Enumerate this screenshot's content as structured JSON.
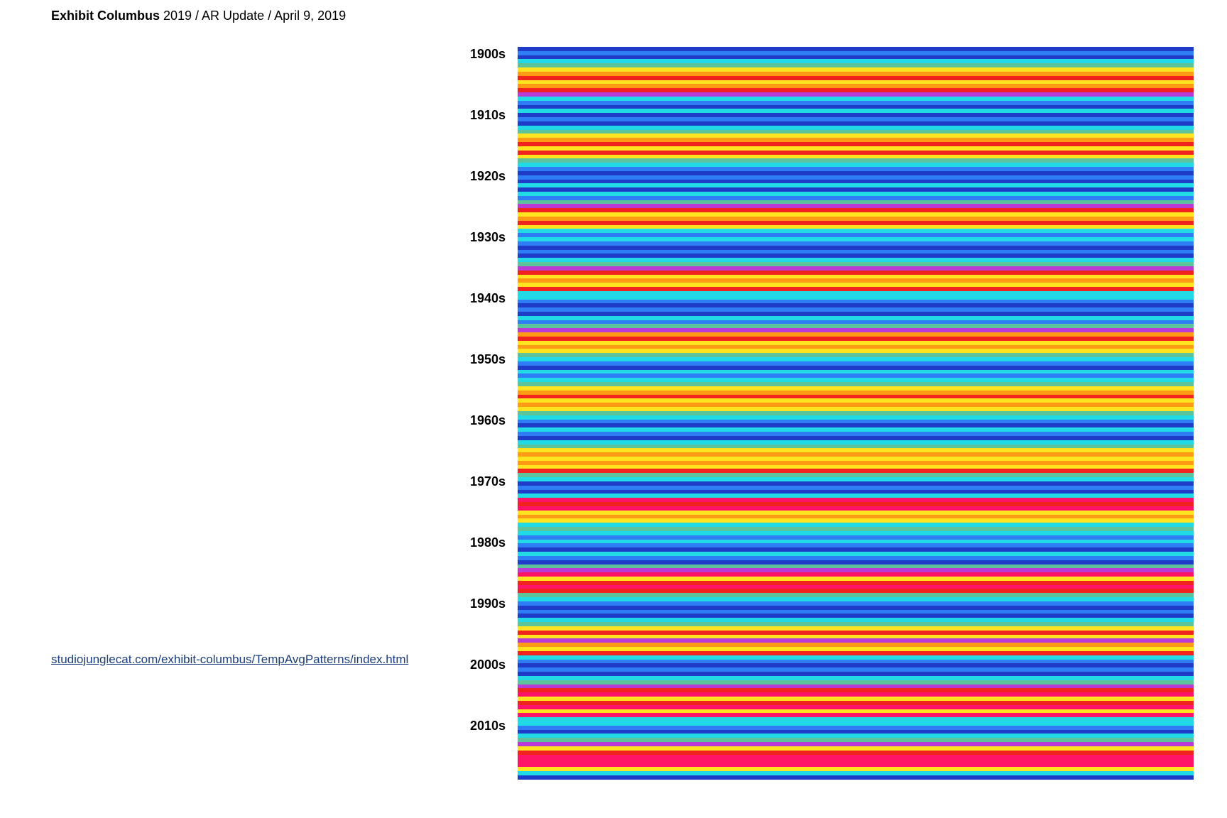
{
  "header": {
    "brand": "Exhibit Columbus",
    "rest": " 2019 / AR Update / April 9, 2019"
  },
  "link": {
    "text": "studiojunglecat.com/exhibit-columbus/TempAvgPatterns/index.html"
  },
  "decades": [
    "1900s",
    "1910s",
    "1920s",
    "1930s",
    "1940s",
    "1950s",
    "1960s",
    "1970s",
    "1980s",
    "1990s",
    "2000s",
    "2010s"
  ],
  "palette": {
    "B": "#1e3cc8",
    "b": "#2f7df5",
    "c": "#22d9e6",
    "g": "#5cc39a",
    "m": "#b93ad6",
    "y": "#ffe41f",
    "o": "#ff9a14",
    "r": "#f0231e",
    "p": "#ff1468"
  },
  "stripes_by_decade": [
    "BbBcgyoryo rmcbB",
    "cBbBcgyoryr ygcb",
    "BbBcBcbgmr yoryc",
    "bcbBbBcgmr yoyrc",
    "cbBbBcbgmo ryoyg",
    "cbBcbcgyor yoygc",
    "bBcbBcgyoy oyrgc",
    "BbBcprpyoy cgcbc",
    "bBcbBgmpyr prgcb",
    "BbBcgyrym oyrcb",
    "BbBcgmrpy rpypc",
    "cbBcgmyrp ppycB"
  ]
}
